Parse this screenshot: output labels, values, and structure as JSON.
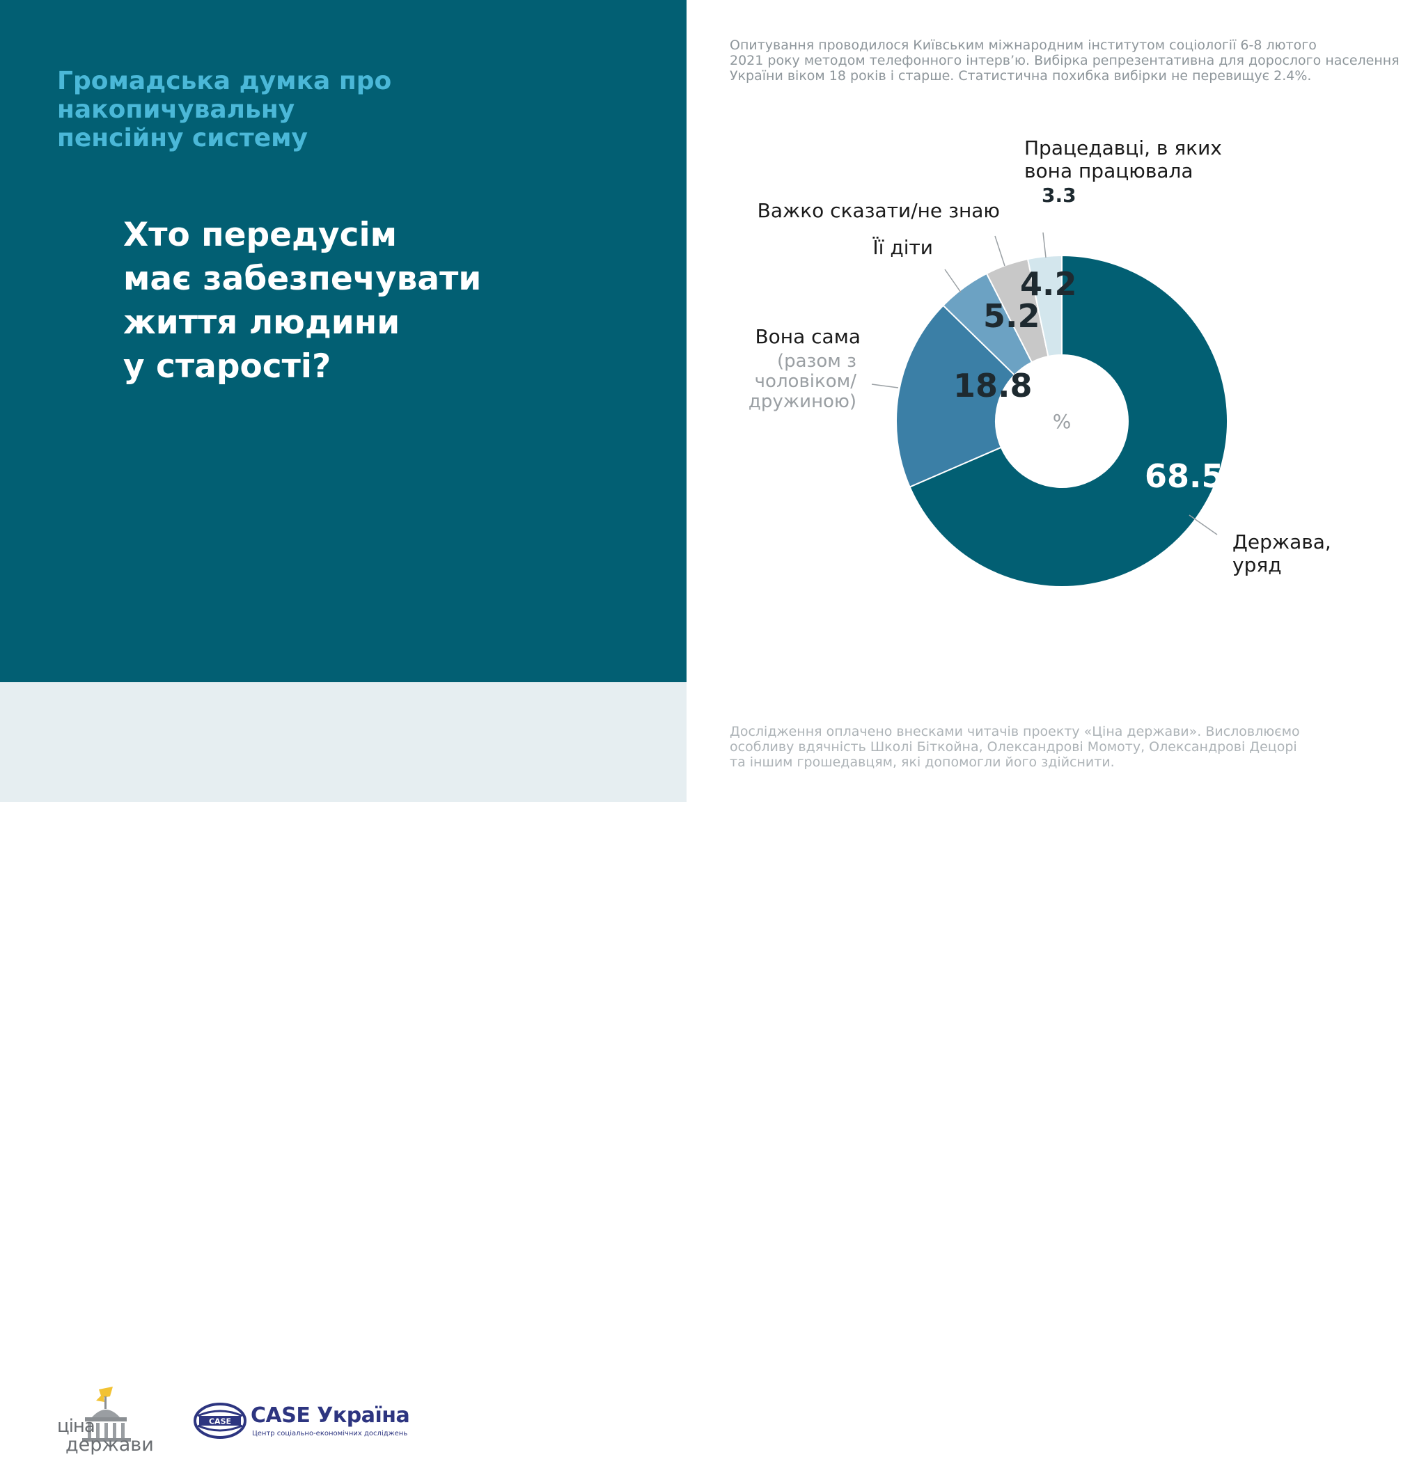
{
  "header": {
    "section_title": "Громадська думка про накопичувальну\nпенсійну систему",
    "question": "Хто передусім\nмає забезпечувати\nжиття людини\nу старості?"
  },
  "methodology": "Опитування проводилося Київським міжнародним інститутом соціології 6-8 лютого\n2021 року методом телефонного інтерв’ю. Вибірка репрезентативна для дорослого населення\nУкраїни віком 18 років і старше. Статистична похибка вибірки не перевищує 2.4%.",
  "footer": {
    "note": "Дослідження оплачено внесками читачів проекту «Ціна держави». Висловлюємо\nособливу вдячність Школі Біткойна, Олександрові Момоту, Олександрові Децорі\nта іншим грошедавцям, які допомогли його здійснити.",
    "logo_cina_line1": "ціна",
    "logo_cina_line2": "держави",
    "logo_case_emblem": "CASE",
    "logo_case_name": "CASE Україна",
    "logo_case_subtitle": "Центр соціально-економічних досліджень"
  },
  "chart_data": {
    "type": "pie",
    "variant": "donut",
    "center_label": "%",
    "slices": [
      {
        "label": "Держава,\nуряд",
        "sublabel": "",
        "value": 68.5,
        "value_label": "68.5",
        "color": "#025F73"
      },
      {
        "label": "Вона сама",
        "sublabel": "(разом з\nчоловіком/\nдружиною)",
        "value": 18.8,
        "value_label": "18.8",
        "color": "#3B7FA6"
      },
      {
        "label": "Її діти",
        "sublabel": "",
        "value": 5.2,
        "value_label": "5.2",
        "color": "#6CA2C3"
      },
      {
        "label": "Важко сказати/не знаю",
        "sublabel": "",
        "value": 4.2,
        "value_label": "4.2",
        "color": "#C8C8C8"
      },
      {
        "label": "Працедавці, в яких\nвона працювала",
        "sublabel": "",
        "value": 3.3,
        "value_label": "3.3",
        "color": "#D3E6ED"
      }
    ]
  }
}
